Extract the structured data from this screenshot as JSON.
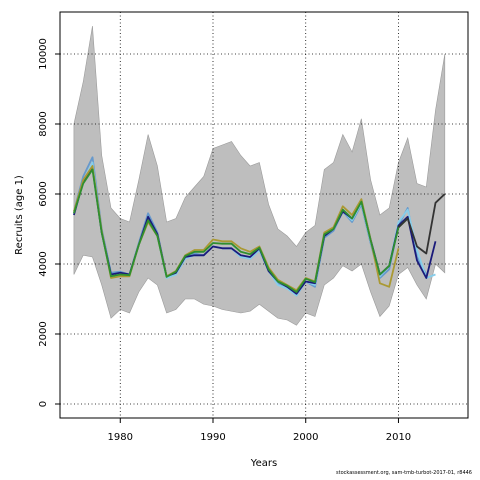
{
  "chart_data": {
    "type": "line",
    "xlabel": "Years",
    "ylabel": "Recruits (age 1)",
    "xlim": [
      1973.5,
      2017.5
    ],
    "ylim": [
      -400,
      11200
    ],
    "xticks": [
      1980,
      1990,
      2000,
      2010
    ],
    "yticks": [
      0,
      2000,
      4000,
      6000,
      8000,
      10000
    ],
    "grid": true,
    "credit": "stockassessment.org, sam-tmb-turbot-2017-01, r8446",
    "band": {
      "x": [
        1975,
        1976,
        1977,
        1978,
        1979,
        1980,
        1981,
        1982,
        1983,
        1984,
        1985,
        1986,
        1987,
        1988,
        1989,
        1990,
        1991,
        1992,
        1993,
        1994,
        1995,
        1996,
        1997,
        1998,
        1999,
        2000,
        2001,
        2002,
        2003,
        2004,
        2005,
        2006,
        2007,
        2008,
        2009,
        2010,
        2011,
        2012,
        2013,
        2014,
        2015
      ],
      "upper": [
        8000,
        9200,
        10800,
        7100,
        5600,
        5300,
        5200,
        6400,
        7700,
        6800,
        5200,
        5300,
        5900,
        6200,
        6500,
        7300,
        7400,
        7500,
        7100,
        6800,
        6900,
        5700,
        5000,
        4800,
        4500,
        4900,
        5100,
        6700,
        6900,
        7700,
        7200,
        8150,
        6400,
        5400,
        5600,
        6900,
        7600,
        6300,
        6200,
        8400,
        10000
      ],
      "lower": [
        3700,
        4250,
        4200,
        3400,
        2450,
        2700,
        2600,
        3200,
        3600,
        3400,
        2600,
        2700,
        3000,
        3000,
        2850,
        2800,
        2700,
        2650,
        2600,
        2650,
        2850,
        2650,
        2450,
        2400,
        2250,
        2600,
        2500,
        3400,
        3600,
        3950,
        3800,
        4000,
        3200,
        2500,
        2800,
        3700,
        3900,
        3400,
        3000,
        4000,
        3750
      ]
    },
    "series": [
      {
        "color": "#6699cc",
        "x": [
          1975,
          1976,
          1977,
          1978,
          1979,
          1980,
          1981,
          1982,
          1983,
          1984,
          1985,
          1986,
          1987,
          1988,
          1989,
          1990,
          1991,
          1992,
          1993,
          1994,
          1995,
          1996,
          1997,
          1998,
          1999,
          2000,
          2001,
          2002,
          2003,
          2004,
          2005,
          2006,
          2007,
          2008,
          2009,
          2010,
          2011,
          2012,
          2013
        ],
        "y": [
          5500,
          6500,
          7050,
          5000,
          3750,
          3780,
          3700,
          4600,
          5450,
          4900,
          3650,
          3750,
          4200,
          4300,
          4250,
          4500,
          4450,
          4450,
          4200,
          4150,
          4400,
          3800,
          3450,
          3350,
          3100,
          3500,
          3350,
          4750,
          4950,
          5500,
          5200,
          5700,
          4600,
          3600,
          3850,
          5100,
          5600,
          4200,
          3700
        ]
      },
      {
        "color": "#87ceeb",
        "x": [
          1975,
          1976,
          1977,
          1978,
          1979,
          1980,
          1981,
          1982,
          1983,
          1984,
          1985,
          1986,
          1987,
          1988,
          1989,
          1990,
          1991,
          1992,
          1993,
          1994,
          1995,
          1996,
          1997,
          1998,
          1999,
          2000,
          2001,
          2002,
          2003,
          2004,
          2005,
          2006,
          2007,
          2008,
          2009,
          2010,
          2011,
          2012,
          2013,
          2014
        ],
        "y": [
          5450,
          6350,
          6900,
          4900,
          3650,
          3700,
          3650,
          4550,
          5300,
          4800,
          3600,
          3700,
          4150,
          4250,
          4250,
          4500,
          4450,
          4450,
          4200,
          4150,
          4400,
          3800,
          3400,
          3300,
          3100,
          3500,
          3400,
          4800,
          5000,
          5500,
          5250,
          5750,
          4650,
          3650,
          3950,
          5200,
          5550,
          4400,
          3600,
          3700
        ]
      },
      {
        "color": "#1a1a7a",
        "x": [
          1975,
          1976,
          1977,
          1978,
          1979,
          1980,
          1981,
          1982,
          1983,
          1984,
          1985,
          1986,
          1987,
          1988,
          1989,
          1990,
          1991,
          1992,
          1993,
          1994,
          1995,
          1996,
          1997,
          1998,
          1999,
          2000,
          2001,
          2002,
          2003,
          2004,
          2005,
          2006,
          2007,
          2008,
          2009,
          2010,
          2011,
          2012,
          2013,
          2014
        ],
        "y": [
          5400,
          6350,
          6750,
          4900,
          3700,
          3750,
          3700,
          4550,
          5350,
          4850,
          3650,
          3750,
          4200,
          4250,
          4250,
          4500,
          4450,
          4450,
          4250,
          4200,
          4450,
          3800,
          3500,
          3350,
          3150,
          3500,
          3450,
          4800,
          5000,
          5500,
          5300,
          5800,
          4700,
          3700,
          3950,
          5100,
          5350,
          4100,
          3600,
          4650
        ]
      },
      {
        "color": "#aa9933",
        "x": [
          1975,
          1976,
          1977,
          1978,
          1979,
          1980,
          1981,
          1982,
          1983,
          1984,
          1985,
          1986,
          1987,
          1988,
          1989,
          1990,
          1991,
          1992,
          1993,
          1994,
          1995,
          1996,
          1997,
          1998,
          1999,
          2000,
          2001,
          2002,
          2003,
          2004,
          2005,
          2006,
          2007,
          2008,
          2009,
          2010
        ],
        "y": [
          5500,
          6400,
          6800,
          4950,
          3600,
          3650,
          3650,
          4550,
          5200,
          4800,
          3650,
          3800,
          4250,
          4400,
          4400,
          4700,
          4650,
          4650,
          4450,
          4350,
          4500,
          3900,
          3550,
          3400,
          3250,
          3600,
          3500,
          4900,
          5050,
          5650,
          5400,
          5850,
          4700,
          3450,
          3350,
          4450
        ]
      },
      {
        "color": "#2f8f2f",
        "x": [
          1975,
          1976,
          1977,
          1978,
          1979,
          1980,
          1981,
          1982,
          1983,
          1984,
          1985,
          1986,
          1987,
          1988,
          1989,
          1990,
          1991,
          1992,
          1993,
          1994,
          1995,
          1996,
          1997,
          1998,
          1999,
          2000,
          2001,
          2002,
          2003,
          2004,
          2005,
          2006,
          2007,
          2008,
          2009,
          2010,
          2011
        ],
        "y": [
          5450,
          6300,
          6700,
          4900,
          3650,
          3700,
          3680,
          4550,
          5250,
          4800,
          3630,
          3780,
          4230,
          4350,
          4350,
          4600,
          4580,
          4580,
          4350,
          4280,
          4470,
          3850,
          3500,
          3380,
          3200,
          3580,
          3480,
          4850,
          5000,
          5550,
          5300,
          5780,
          4680,
          3700,
          3950,
          5050,
          5300
        ]
      },
      {
        "color": "#333333",
        "x": [
          2010,
          2011,
          2012,
          2013,
          2014,
          2015
        ],
        "y": [
          5050,
          5300,
          4500,
          4300,
          5750,
          6000
        ]
      }
    ]
  }
}
